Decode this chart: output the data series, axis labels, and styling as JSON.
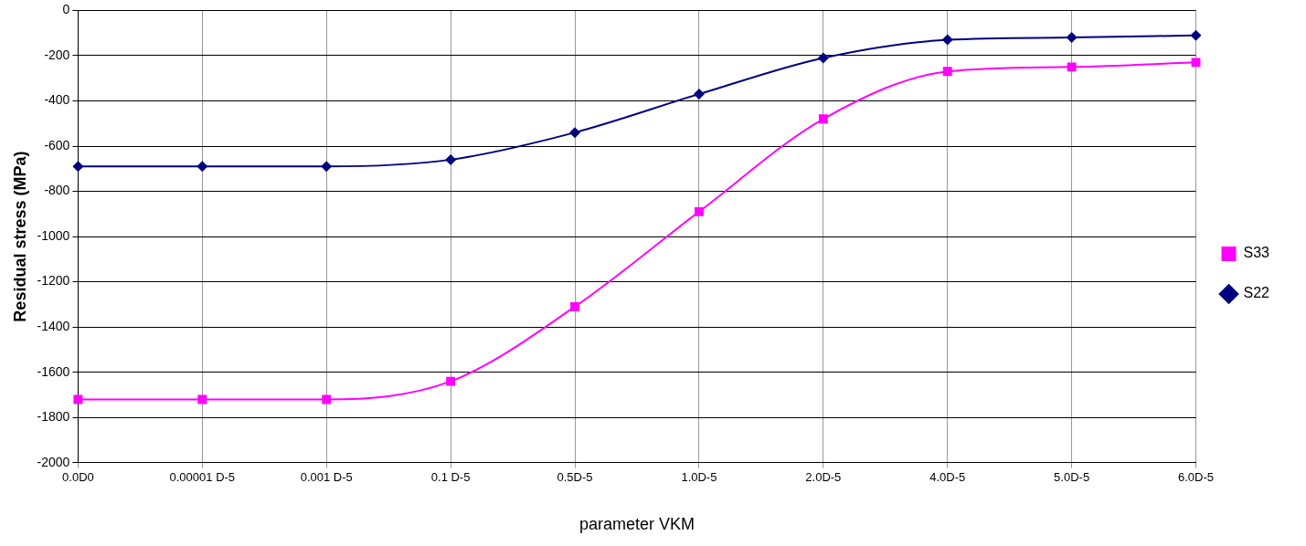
{
  "chart_data": {
    "type": "line",
    "xlabel": "parameter VKM",
    "ylabel": "Residual stress (MPa)",
    "categories": [
      "0.0D0",
      "0.00001 D-5",
      "0.001 D-5",
      "0.1 D-5",
      "0.5D-5",
      "1.0D-5",
      "2.0D-5",
      "4.0D-5",
      "5.0D-5",
      "6.0D-5"
    ],
    "series": [
      {
        "name": "S33",
        "color": "#ff00ff",
        "marker": "square",
        "values": [
          -1720,
          -1720,
          -1720,
          -1640,
          -1310,
          -890,
          -480,
          -270,
          -250,
          -230
        ]
      },
      {
        "name": "S22",
        "color": "#000080",
        "marker": "diamond",
        "values": [
          -690,
          -690,
          -690,
          -660,
          -540,
          -370,
          -210,
          -130,
          -120,
          -110
        ]
      }
    ],
    "ylim": [
      -2000,
      0
    ],
    "yticks": [
      -2000,
      -1800,
      -1600,
      -1400,
      -1200,
      -1000,
      -800,
      -600,
      -400,
      -200,
      0
    ],
    "grid": true,
    "legend": "right",
    "line_style": "solid"
  }
}
